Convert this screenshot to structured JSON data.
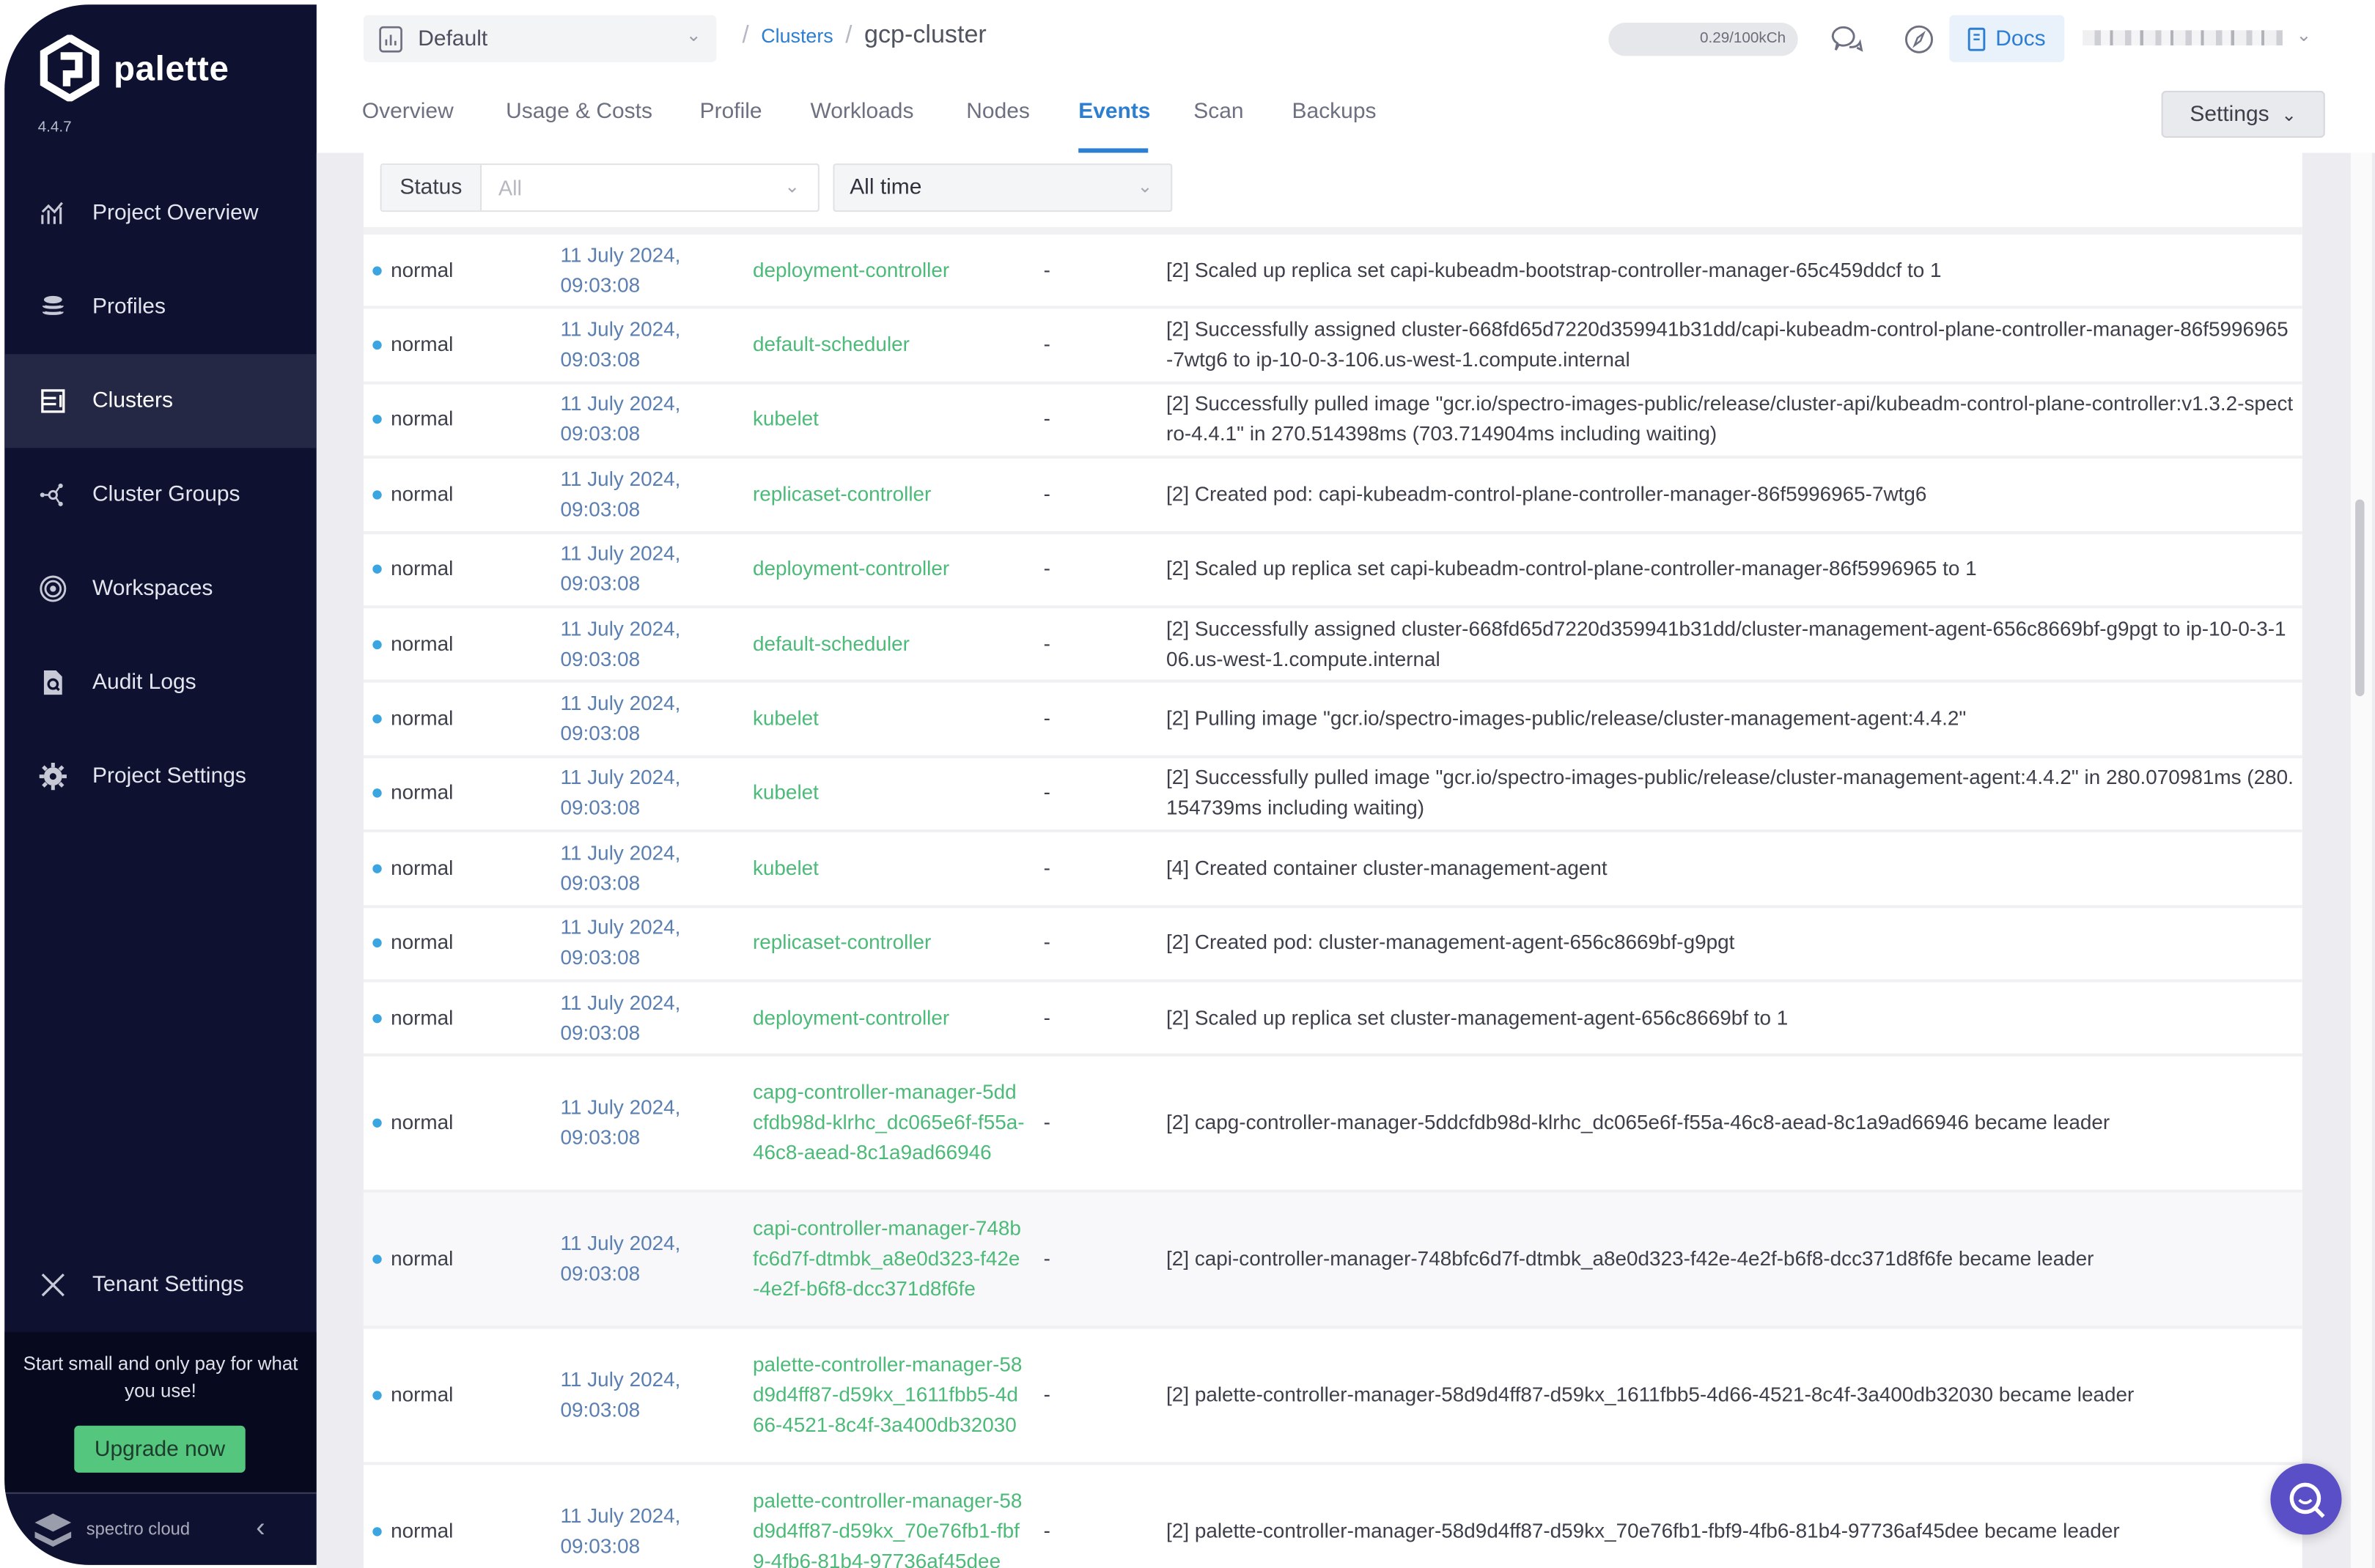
{
  "sidebar": {
    "brand": "palette",
    "version": "4.4.7",
    "items": [
      {
        "label": "Project Overview",
        "icon": "chart-icon"
      },
      {
        "label": "Profiles",
        "icon": "layers-icon"
      },
      {
        "label": "Clusters",
        "icon": "clusters-icon",
        "active": true
      },
      {
        "label": "Cluster Groups",
        "icon": "cluster-groups-icon"
      },
      {
        "label": "Workspaces",
        "icon": "workspaces-icon"
      },
      {
        "label": "Audit Logs",
        "icon": "audit-logs-icon"
      },
      {
        "label": "Project Settings",
        "icon": "gear-icon"
      }
    ],
    "tenant_settings": "Tenant Settings",
    "promo_text": "Start small and only pay for what you use!",
    "upgrade_label": "Upgrade now",
    "footer_brand": "spectro cloud"
  },
  "header": {
    "project": "Default",
    "breadcrumb": {
      "parent": "Clusters",
      "current": "gcp-cluster"
    },
    "credits": "0.29/100kCh",
    "docs_label": "Docs"
  },
  "tabs": [
    {
      "label": "Overview"
    },
    {
      "label": "Usage & Costs"
    },
    {
      "label": "Profile"
    },
    {
      "label": "Workloads"
    },
    {
      "label": "Nodes"
    },
    {
      "label": "Events",
      "active": true
    },
    {
      "label": "Scan"
    },
    {
      "label": "Backups"
    }
  ],
  "settings_label": "Settings",
  "filters": {
    "status_label": "Status",
    "status_placeholder": "All",
    "time_value": "All time"
  },
  "colors": {
    "accent": "#2c7ed0",
    "source": "#4cba78",
    "sidebar": "#0e1230",
    "upgrade": "#54c67e",
    "help": "#5b4fc7"
  },
  "events": [
    {
      "status": "normal",
      "time": "11 July 2024, 09:03:08",
      "source": "deployment-controller",
      "object": "-",
      "message": "[2] Scaled up replica set capi-kubeadm-bootstrap-controller-manager-65c459ddcf to 1"
    },
    {
      "status": "normal",
      "time": "11 July 2024, 09:03:08",
      "source": "default-scheduler",
      "object": "-",
      "message": "[2] Successfully assigned cluster-668fd65d7220d359941b31dd/capi-kubeadm-control-plane-controller-manager-86f5996965-7wtg6 to ip-10-0-3-106.us-west-1.compute.internal"
    },
    {
      "status": "normal",
      "time": "11 July 2024, 09:03:08",
      "source": "kubelet",
      "object": "-",
      "message": "[2] Successfully pulled image \"gcr.io/spectro-images-public/release/cluster-api/kubeadm-control-plane-controller:v1.3.2-spectro-4.4.1\" in 270.514398ms (703.714904ms including waiting)"
    },
    {
      "status": "normal",
      "time": "11 July 2024, 09:03:08",
      "source": "replicaset-controller",
      "object": "-",
      "message": "[2] Created pod: capi-kubeadm-control-plane-controller-manager-86f5996965-7wtg6"
    },
    {
      "status": "normal",
      "time": "11 July 2024, 09:03:08",
      "source": "deployment-controller",
      "object": "-",
      "message": "[2] Scaled up replica set capi-kubeadm-control-plane-controller-manager-86f5996965 to 1"
    },
    {
      "status": "normal",
      "time": "11 July 2024, 09:03:08",
      "source": "default-scheduler",
      "object": "-",
      "message": "[2] Successfully assigned cluster-668fd65d7220d359941b31dd/cluster-management-agent-656c8669bf-g9pgt to ip-10-0-3-106.us-west-1.compute.internal"
    },
    {
      "status": "normal",
      "time": "11 July 2024, 09:03:08",
      "source": "kubelet",
      "object": "-",
      "message": "[2] Pulling image \"gcr.io/spectro-images-public/release/cluster-management-agent:4.4.2\""
    },
    {
      "status": "normal",
      "time": "11 July 2024, 09:03:08",
      "source": "kubelet",
      "object": "-",
      "message": "[2] Successfully pulled image \"gcr.io/spectro-images-public/release/cluster-management-agent:4.4.2\" in 280.070981ms (280.154739ms including waiting)"
    },
    {
      "status": "normal",
      "time": "11 July 2024, 09:03:08",
      "source": "kubelet",
      "object": "-",
      "message": "[4] Created container cluster-management-agent"
    },
    {
      "status": "normal",
      "time": "11 July 2024, 09:03:08",
      "source": "replicaset-controller",
      "object": "-",
      "message": "[2] Created pod: cluster-management-agent-656c8669bf-g9pgt"
    },
    {
      "status": "normal",
      "time": "11 July 2024, 09:03:08",
      "source": "deployment-controller",
      "object": "-",
      "message": "[2] Scaled up replica set cluster-management-agent-656c8669bf to 1"
    },
    {
      "status": "normal",
      "time": "11 July 2024, 09:03:08",
      "source": "capg-controller-manager-5ddcfdb98d-klrhc_dc065e6f-f55a-46c8-aead-8c1a9ad66946",
      "object": "-",
      "message": "[2] capg-controller-manager-5ddcfdb98d-klrhc_dc065e6f-f55a-46c8-aead-8c1a9ad66946 became leader"
    },
    {
      "status": "normal",
      "time": "11 July 2024, 09:03:08",
      "source": "capi-controller-manager-748bfc6d7f-dtmbk_a8e0d323-f42e-4e2f-b6f8-dcc371d8f6fe",
      "object": "-",
      "message": "[2] capi-controller-manager-748bfc6d7f-dtmbk_a8e0d323-f42e-4e2f-b6f8-dcc371d8f6fe became leader"
    },
    {
      "status": "normal",
      "time": "11 July 2024, 09:03:08",
      "source": "palette-controller-manager-58d9d4ff87-d59kx_1611fbb5-4d66-4521-8c4f-3a400db32030",
      "object": "-",
      "message": "[2] palette-controller-manager-58d9d4ff87-d59kx_1611fbb5-4d66-4521-8c4f-3a400db32030 became leader"
    },
    {
      "status": "normal",
      "time": "11 July 2024, 09:03:08",
      "source": "palette-controller-manager-58d9d4ff87-d59kx_70e76fb1-fbf9-4fb6-81b4-97736af45dee",
      "object": "-",
      "message": "[2] palette-controller-manager-58d9d4ff87-d59kx_70e76fb1-fbf9-4fb6-81b4-97736af45dee became leader"
    }
  ]
}
